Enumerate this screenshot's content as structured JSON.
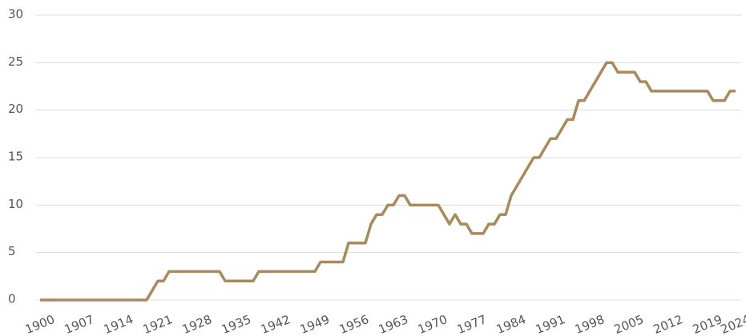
{
  "chart_data": {
    "type": "line",
    "x": [
      1900,
      1901,
      1902,
      1903,
      1904,
      1905,
      1906,
      1907,
      1908,
      1909,
      1910,
      1911,
      1912,
      1913,
      1914,
      1915,
      1916,
      1917,
      1918,
      1919,
      1920,
      1921,
      1922,
      1923,
      1924,
      1925,
      1926,
      1927,
      1928,
      1929,
      1930,
      1931,
      1932,
      1933,
      1934,
      1935,
      1936,
      1937,
      1938,
      1939,
      1940,
      1941,
      1942,
      1943,
      1944,
      1945,
      1946,
      1947,
      1948,
      1949,
      1950,
      1951,
      1952,
      1953,
      1954,
      1955,
      1956,
      1957,
      1958,
      1959,
      1960,
      1961,
      1962,
      1963,
      1964,
      1965,
      1966,
      1967,
      1968,
      1969,
      1970,
      1971,
      1972,
      1973,
      1974,
      1975,
      1976,
      1977,
      1978,
      1979,
      1980,
      1981,
      1982,
      1983,
      1984,
      1985,
      1986,
      1987,
      1988,
      1989,
      1990,
      1991,
      1992,
      1993,
      1994,
      1995,
      1996,
      1997,
      1998,
      1999,
      2000,
      2001,
      2002,
      2003,
      2004,
      2005,
      2006,
      2007,
      2008,
      2009,
      2010,
      2011,
      2012,
      2013,
      2014,
      2015,
      2016,
      2017,
      2018,
      2019,
      2020,
      2021,
      2022,
      2023,
      2024
    ],
    "series": [
      {
        "color": "#a88a5c",
        "values": [
          0,
          0,
          0,
          0,
          0,
          0,
          0,
          0,
          0,
          0,
          0,
          0,
          0,
          0,
          0,
          0,
          0,
          0,
          0,
          0,
          1,
          2,
          2,
          3,
          3,
          3,
          3,
          3,
          3,
          3,
          3,
          3,
          3,
          2,
          2,
          2,
          2,
          2,
          2,
          3,
          3,
          3,
          3,
          3,
          3,
          3,
          3,
          3,
          3,
          3,
          4,
          4,
          4,
          4,
          4,
          6,
          6,
          6,
          6,
          8,
          9,
          9,
          10,
          10,
          11,
          11,
          10,
          10,
          10,
          10,
          10,
          10,
          9,
          8,
          9,
          8,
          8,
          7,
          7,
          7,
          8,
          8,
          9,
          9,
          11,
          12,
          13,
          14,
          15,
          15,
          16,
          17,
          17,
          18,
          19,
          19,
          21,
          21,
          22,
          23,
          24,
          25,
          25,
          24,
          24,
          24,
          24,
          23,
          23,
          22,
          22,
          22,
          22,
          22,
          22,
          22,
          22,
          22,
          22,
          22,
          21,
          21,
          21,
          22,
          22
        ]
      }
    ],
    "xlim": [
      1900,
      2024
    ],
    "xticks": [
      1900,
      1907,
      1914,
      1921,
      1928,
      1935,
      1942,
      1949,
      1956,
      1963,
      1970,
      1977,
      1984,
      1991,
      1998,
      2005,
      2012,
      2019,
      2024
    ],
    "ylim": [
      0,
      30
    ],
    "yticks": [
      0,
      5,
      10,
      15,
      20,
      25,
      30
    ],
    "grid": true
  }
}
